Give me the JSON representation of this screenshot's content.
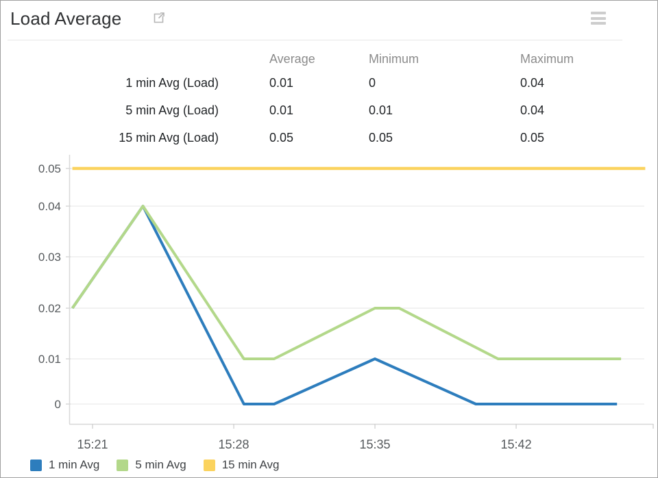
{
  "header": {
    "title": "Load Average"
  },
  "summary_table": {
    "columns": [
      "Average",
      "Minimum",
      "Maximum"
    ],
    "rows": [
      {
        "label": "1 min Avg (Load)",
        "average": "0.01",
        "minimum": "0",
        "maximum": "0.04"
      },
      {
        "label": "5 min Avg (Load)",
        "average": "0.01",
        "minimum": "0.01",
        "maximum": "0.04"
      },
      {
        "label": "15 min Avg (Load)",
        "average": "0.05",
        "minimum": "0.05",
        "maximum": "0.05"
      }
    ]
  },
  "chart_data": {
    "type": "line",
    "title": "Load Average",
    "xlabel": "",
    "ylabel": "",
    "x_encoding": "minutes after 15:20",
    "x_range_minutes": [
      0,
      28.4
    ],
    "x_ticks": [
      {
        "minutes": 1,
        "label": "15:21"
      },
      {
        "minutes": 8,
        "label": "15:28"
      },
      {
        "minutes": 15,
        "label": "15:35"
      },
      {
        "minutes": 22,
        "label": "15:42"
      }
    ],
    "y_ticks": [
      "0",
      "0.01",
      "0.02",
      "0.03",
      "0.04",
      "0.05"
    ],
    "ylim": [
      0,
      0.05
    ],
    "grid": true,
    "legend_position": "bottom-left",
    "series": [
      {
        "name": "1 min Avg",
        "color": "#2d7dbd",
        "points": [
          [
            0,
            0.02
          ],
          [
            3.5,
            0.04
          ],
          [
            8.5,
            0
          ],
          [
            10,
            0
          ],
          [
            15,
            0.01
          ],
          [
            20,
            0
          ],
          [
            27,
            0
          ]
        ]
      },
      {
        "name": "5 min Avg",
        "color": "#b3d88a",
        "points": [
          [
            0,
            0.02
          ],
          [
            3.5,
            0.04
          ],
          [
            8.5,
            0.01
          ],
          [
            10,
            0.01
          ],
          [
            15,
            0.02
          ],
          [
            16.2,
            0.02
          ],
          [
            21.1,
            0.01
          ],
          [
            27.2,
            0.01
          ]
        ]
      },
      {
        "name": "15 min Avg",
        "color": "#fbd35e",
        "points": [
          [
            0,
            0.05
          ],
          [
            28.4,
            0.05
          ]
        ]
      }
    ]
  }
}
